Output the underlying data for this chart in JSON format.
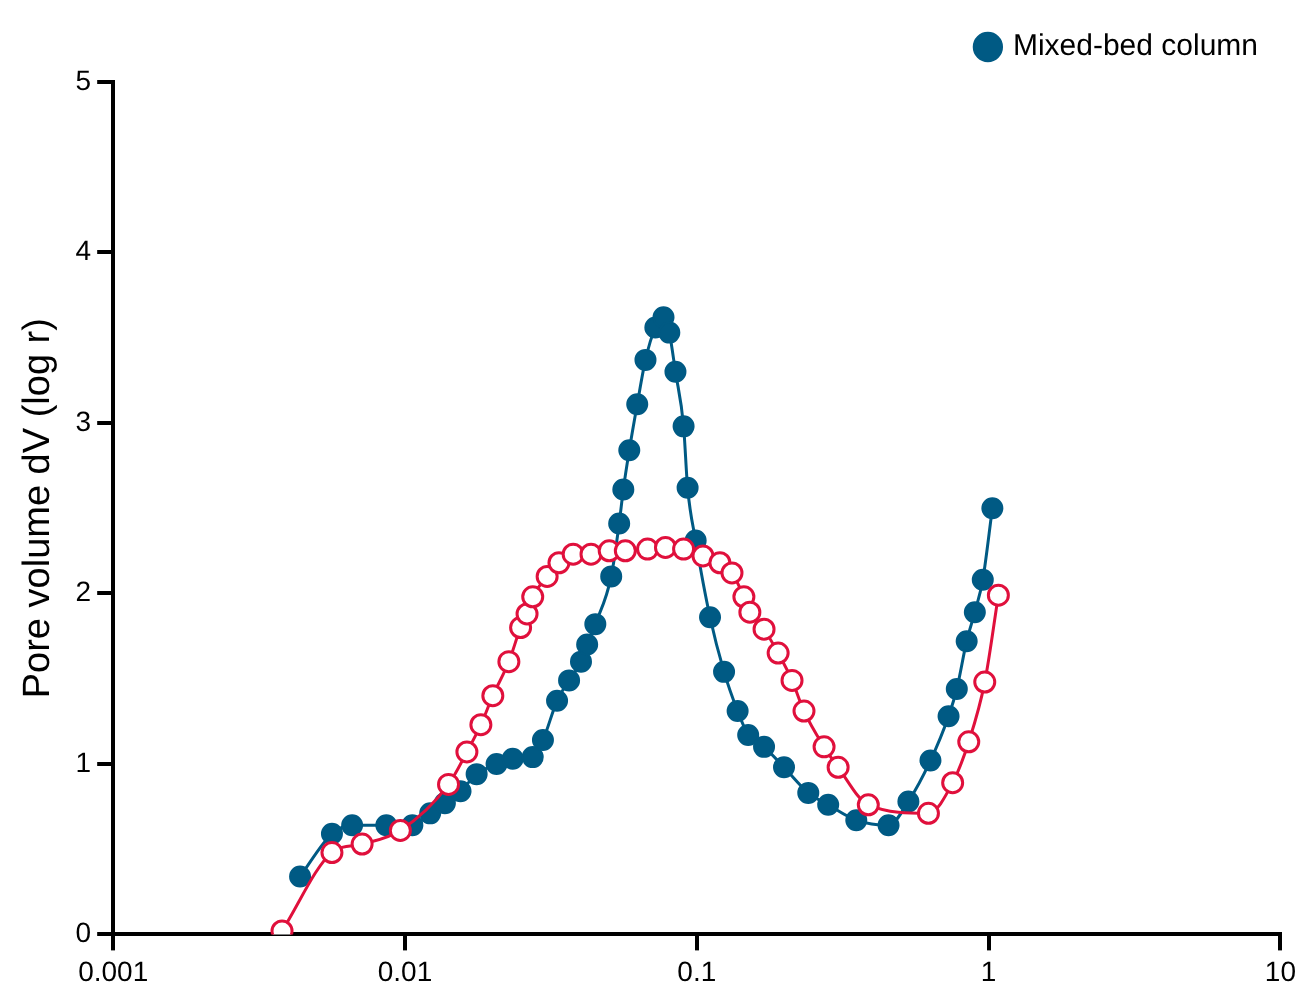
{
  "chart_data": {
    "type": "line",
    "ylabel": "Pore volume dV (log r)",
    "log": "x",
    "xlim": [
      0.001,
      10
    ],
    "xticks": [
      0.001,
      0.01,
      0.1,
      1,
      10
    ],
    "ylim": [
      0,
      5
    ],
    "yticks": [
      0,
      1,
      2,
      3,
      4,
      5
    ],
    "grid": false,
    "legend": "top right",
    "marker": "circle",
    "line_style": "solid",
    "series": [
      {
        "color": "#e0103c",
        "x": [
          0.00379,
          0.00562,
          0.00713,
          0.00964,
          0.0141,
          0.0163,
          0.0182,
          0.02,
          0.0227,
          0.0249,
          0.0262,
          0.0274,
          0.0307,
          0.0337,
          0.0377,
          0.0434,
          0.0501,
          0.0569,
          0.0678,
          0.0781,
          0.0901,
          0.105,
          0.12,
          0.132,
          0.145,
          0.152,
          0.17,
          0.19,
          0.212,
          0.233,
          0.273,
          0.305,
          0.387,
          0.622,
          0.753,
          0.855,
          0.97,
          1.08
        ],
        "values": [
          0.02,
          0.48,
          0.53,
          0.61,
          0.88,
          1.07,
          1.23,
          1.4,
          1.6,
          1.8,
          1.88,
          1.98,
          2.1,
          2.18,
          2.23,
          2.23,
          2.25,
          2.25,
          2.26,
          2.27,
          2.26,
          2.22,
          2.18,
          2.12,
          1.98,
          1.89,
          1.79,
          1.65,
          1.49,
          1.31,
          1.1,
          0.98,
          0.76,
          0.71,
          0.89,
          1.13,
          1.48,
          1.99
        ]
      },
      {
        "name": "Mixed-bed column",
        "color": "#005a84",
        "x": [
          0.00437,
          0.00562,
          0.00659,
          0.00863,
          0.0106,
          0.0122,
          0.0137,
          0.0155,
          0.0176,
          0.0206,
          0.0234,
          0.0274,
          0.0297,
          0.0332,
          0.0365,
          0.0401,
          0.0421,
          0.0449,
          0.0509,
          0.0542,
          0.056,
          0.0587,
          0.0625,
          0.0667,
          0.0721,
          0.0769,
          0.0805,
          0.0845,
          0.0901,
          0.093,
          0.0991,
          0.111,
          0.124,
          0.138,
          0.15,
          0.17,
          0.199,
          0.241,
          0.282,
          0.352,
          0.454,
          0.531,
          0.632,
          0.729,
          0.778,
          0.841,
          0.897,
          0.955,
          1.03
        ],
        "values": [
          0.34,
          0.59,
          0.64,
          0.64,
          0.64,
          0.71,
          0.77,
          0.84,
          0.94,
          1.0,
          1.03,
          1.04,
          1.14,
          1.37,
          1.49,
          1.6,
          1.7,
          1.82,
          2.1,
          2.41,
          2.61,
          2.84,
          3.11,
          3.37,
          3.56,
          3.62,
          3.53,
          3.3,
          2.98,
          2.62,
          2.31,
          1.86,
          1.54,
          1.31,
          1.17,
          1.1,
          0.98,
          0.83,
          0.76,
          0.67,
          0.64,
          0.78,
          1.02,
          1.28,
          1.44,
          1.72,
          1.89,
          2.08,
          2.5
        ]
      }
    ]
  }
}
